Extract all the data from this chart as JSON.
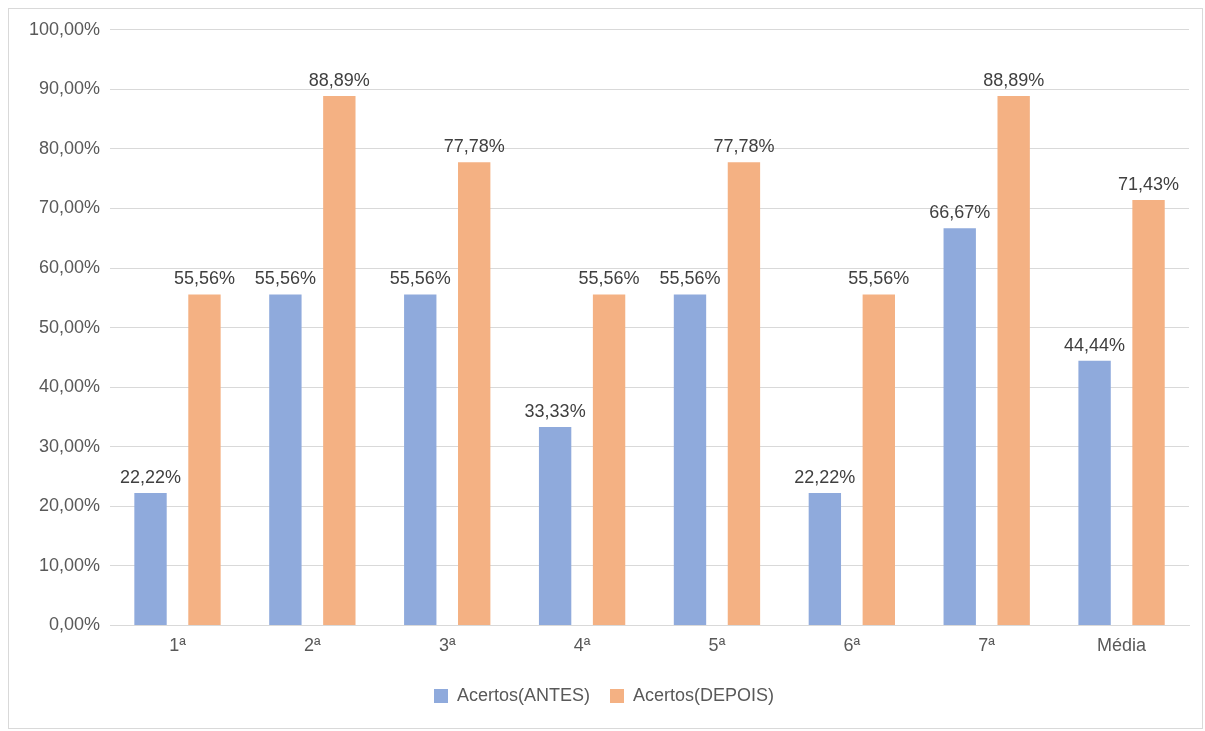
{
  "chart_data": {
    "type": "bar",
    "categories": [
      "1ª",
      "2ª",
      "3ª",
      "4ª",
      "5ª",
      "6ª",
      "7ª",
      "Média"
    ],
    "series": [
      {
        "name": "Acertos(ANTES)",
        "color": "#8faadc",
        "values": [
          22.22,
          55.56,
          55.56,
          33.33,
          55.56,
          22.22,
          66.67,
          44.44
        ],
        "value_labels": [
          "22,22%",
          "55,56%",
          "55,56%",
          "33,33%",
          "55,56%",
          "22,22%",
          "66,67%",
          "44,44%"
        ]
      },
      {
        "name": "Acertos(DEPOIS)",
        "color": "#f4b183",
        "values": [
          55.56,
          88.89,
          77.78,
          55.56,
          77.78,
          55.56,
          88.89,
          71.43
        ],
        "value_labels": [
          "55,56%",
          "88,89%",
          "77,78%",
          "55,56%",
          "77,78%",
          "55,56%",
          "88,89%",
          "71,43%"
        ]
      }
    ],
    "ylim": [
      0,
      100
    ],
    "yticks": [
      {
        "value": 0,
        "label": "0,00%"
      },
      {
        "value": 10,
        "label": "10,00%"
      },
      {
        "value": 20,
        "label": "20,00%"
      },
      {
        "value": 30,
        "label": "30,00%"
      },
      {
        "value": 40,
        "label": "40,00%"
      },
      {
        "value": 50,
        "label": "50,00%"
      },
      {
        "value": 60,
        "label": "60,00%"
      },
      {
        "value": 70,
        "label": "70,00%"
      },
      {
        "value": 80,
        "label": "80,00%"
      },
      {
        "value": 90,
        "label": "90,00%"
      },
      {
        "value": 100,
        "label": "100,00%"
      }
    ],
    "grid": "y",
    "legend": "bottom"
  }
}
